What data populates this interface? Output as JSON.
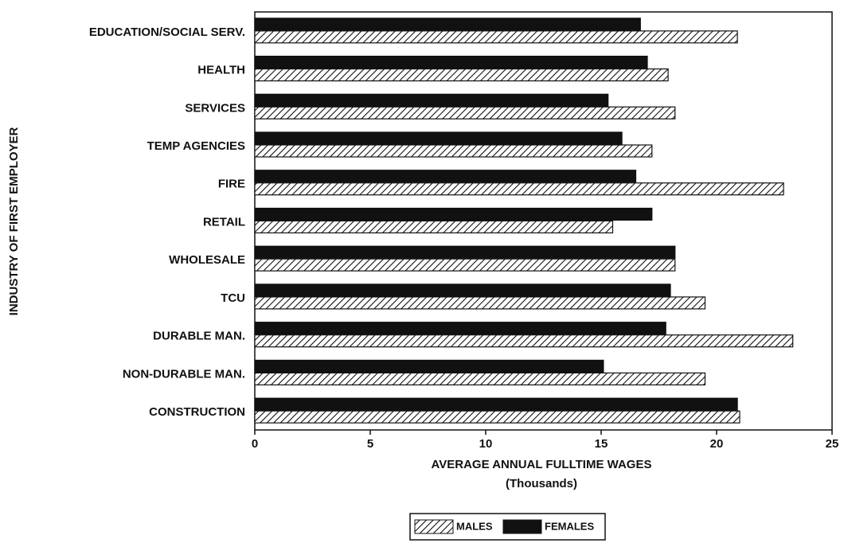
{
  "chart_data": {
    "type": "barh",
    "ylabel": "INDUSTRY OF FIRST EMPLOYER",
    "xlabel": "AVERAGE ANNUAL FULLTIME WAGES",
    "xlabel_sub": "(Thousands)",
    "categories": [
      "EDUCATION/SOCIAL SERV.",
      "HEALTH",
      "SERVICES",
      "TEMP AGENCIES",
      "FIRE",
      "RETAIL",
      "WHOLESALE",
      "TCU",
      "DURABLE MAN.",
      "NON-DURABLE MAN.",
      "CONSTRUCTION"
    ],
    "series": [
      {
        "name": "MALES",
        "color": "#111111",
        "hatch": true,
        "values": [
          20.9,
          17.9,
          18.2,
          17.2,
          22.9,
          15.5,
          18.2,
          19.5,
          23.3,
          19.5,
          21.0
        ]
      },
      {
        "name": "FEMALES",
        "color": "#111111",
        "hatch": false,
        "values": [
          16.7,
          17.0,
          15.3,
          15.9,
          16.5,
          17.2,
          18.2,
          18.0,
          17.8,
          15.1,
          20.9
        ]
      }
    ],
    "xlim": [
      0,
      25
    ],
    "xticks": [
      0,
      5,
      10,
      15,
      20,
      25
    ]
  }
}
